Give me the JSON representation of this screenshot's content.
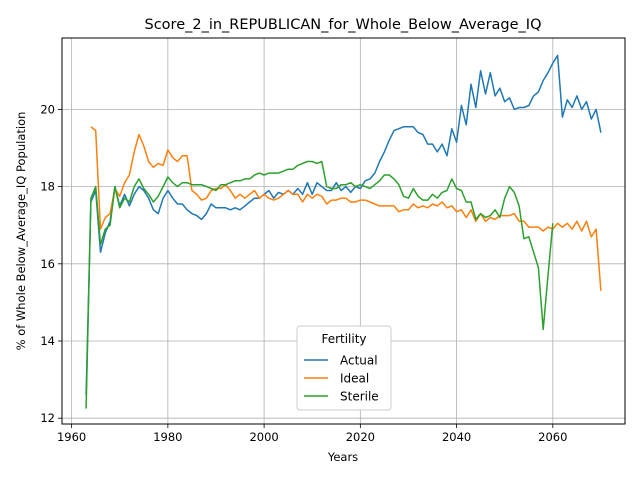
{
  "chart_data": {
    "type": "line",
    "title": "Score_2_in_REPUBLICAN_for_Whole_Below_Average_IQ",
    "xlabel": "Years",
    "ylabel": "% of Whole Below_Average_IQ Population",
    "xlim": [
      1958,
      2075
    ],
    "ylim": [
      11.85,
      21.85
    ],
    "xticks": [
      1960,
      1980,
      2000,
      2020,
      2040,
      2060
    ],
    "yticks": [
      12,
      14,
      16,
      18,
      20
    ],
    "grid": true,
    "legend": {
      "title": "Fertility",
      "placement": "bottom-center"
    },
    "x": [
      1963,
      1964,
      1965,
      1966,
      1967,
      1968,
      1969,
      1970,
      1971,
      1972,
      1973,
      1974,
      1975,
      1976,
      1977,
      1978,
      1979,
      1980,
      1981,
      1982,
      1983,
      1984,
      1985,
      1986,
      1987,
      1988,
      1989,
      1990,
      1991,
      1992,
      1993,
      1994,
      1995,
      1996,
      1997,
      1998,
      1999,
      2000,
      2001,
      2002,
      2003,
      2004,
      2005,
      2006,
      2007,
      2008,
      2009,
      2010,
      2011,
      2012,
      2013,
      2014,
      2015,
      2016,
      2017,
      2018,
      2019,
      2020,
      2021,
      2022,
      2023,
      2024,
      2025,
      2026,
      2027,
      2028,
      2029,
      2030,
      2031,
      2032,
      2033,
      2034,
      2035,
      2036,
      2037,
      2038,
      2039,
      2040,
      2041,
      2042,
      2043,
      2044,
      2045,
      2046,
      2047,
      2048,
      2049,
      2050,
      2051,
      2052,
      2053,
      2054,
      2055,
      2056,
      2057,
      2058,
      2059,
      2060,
      2061,
      2062,
      2063,
      2064,
      2065,
      2066,
      2067,
      2068,
      2069,
      2070
    ],
    "series": [
      {
        "name": "Actual",
        "color": "#1f77b4",
        "values": [
          12.6,
          17.6,
          17.9,
          16.3,
          16.8,
          17.1,
          18.0,
          17.5,
          17.8,
          17.5,
          17.8,
          18.0,
          17.9,
          17.7,
          17.4,
          17.3,
          17.7,
          17.9,
          17.7,
          17.55,
          17.55,
          17.4,
          17.3,
          17.25,
          17.15,
          17.3,
          17.55,
          17.45,
          17.45,
          17.45,
          17.4,
          17.45,
          17.4,
          17.5,
          17.6,
          17.7,
          17.7,
          17.8,
          17.9,
          17.7,
          17.85,
          17.8,
          17.9,
          17.8,
          17.95,
          17.8,
          18.1,
          17.8,
          18.1,
          18.0,
          17.9,
          17.9,
          18.1,
          17.9,
          18.0,
          17.85,
          18.0,
          17.95,
          18.15,
          18.2,
          18.35,
          18.65,
          18.9,
          19.2,
          19.45,
          19.5,
          19.55,
          19.55,
          19.55,
          19.4,
          19.35,
          19.1,
          19.1,
          18.9,
          19.1,
          18.8,
          19.5,
          19.15,
          20.1,
          19.6,
          20.65,
          20.05,
          21.0,
          20.4,
          20.95,
          20.35,
          20.55,
          20.2,
          20.3,
          20.0,
          20.05,
          20.05,
          20.1,
          20.35,
          20.45,
          20.75,
          20.95,
          21.2,
          21.4,
          19.8,
          20.25,
          20.05,
          20.35,
          20.0,
          20.2,
          19.75,
          20.0,
          19.4
        ]
      },
      {
        "name": "Ideal",
        "color": "#ff7f0e",
        "values": [
          null,
          19.55,
          19.45,
          16.9,
          17.2,
          17.3,
          17.95,
          17.75,
          18.1,
          18.3,
          18.9,
          19.35,
          19.05,
          18.65,
          18.5,
          18.6,
          18.55,
          18.95,
          18.75,
          18.65,
          18.8,
          18.8,
          17.9,
          17.8,
          17.65,
          17.7,
          17.9,
          17.95,
          17.95,
          18.05,
          17.9,
          17.7,
          17.8,
          17.7,
          17.8,
          17.9,
          17.7,
          17.8,
          17.7,
          17.65,
          17.7,
          17.8,
          17.9,
          17.8,
          17.8,
          17.6,
          17.8,
          17.7,
          17.8,
          17.75,
          17.55,
          17.65,
          17.65,
          17.7,
          17.7,
          17.6,
          17.6,
          17.65,
          17.65,
          17.6,
          17.55,
          17.5,
          17.5,
          17.5,
          17.5,
          17.35,
          17.4,
          17.4,
          17.55,
          17.45,
          17.5,
          17.45,
          17.55,
          17.5,
          17.6,
          17.45,
          17.5,
          17.35,
          17.4,
          17.2,
          17.4,
          17.1,
          17.3,
          17.1,
          17.2,
          17.15,
          17.25,
          17.25,
          17.25,
          17.3,
          17.1,
          17.1,
          16.95,
          16.95,
          16.95,
          16.85,
          16.95,
          16.9,
          17.05,
          16.95,
          17.05,
          16.9,
          17.1,
          16.85,
          17.1,
          16.7,
          16.9,
          15.3
        ]
      },
      {
        "name": "Sterile",
        "color": "#2ca02c",
        "values": [
          12.25,
          17.7,
          18.0,
          16.5,
          16.9,
          17.0,
          18.0,
          17.45,
          17.7,
          17.6,
          18.0,
          18.2,
          17.95,
          17.8,
          17.6,
          17.75,
          18.0,
          18.25,
          18.1,
          18.0,
          18.1,
          18.1,
          18.05,
          18.05,
          18.05,
          18.0,
          17.95,
          17.9,
          18.05,
          18.05,
          18.1,
          18.15,
          18.15,
          18.2,
          18.2,
          18.3,
          18.35,
          18.3,
          18.35,
          18.35,
          18.35,
          18.4,
          18.45,
          18.45,
          18.55,
          18.6,
          18.65,
          18.65,
          18.6,
          18.65,
          18.0,
          17.95,
          17.95,
          18.05,
          18.05,
          18.1,
          18.0,
          18.05,
          18.0,
          17.95,
          18.05,
          18.15,
          18.3,
          18.3,
          18.2,
          18.05,
          17.75,
          17.7,
          17.95,
          17.75,
          17.65,
          17.65,
          17.8,
          17.7,
          17.85,
          17.9,
          18.2,
          17.95,
          17.9,
          17.6,
          17.6,
          17.15,
          17.3,
          17.2,
          17.25,
          17.4,
          17.2,
          17.7,
          18.0,
          17.85,
          17.5,
          16.65,
          16.7,
          16.3,
          15.9,
          14.3,
          15.7,
          17.05,
          null,
          null,
          null,
          null,
          null,
          null,
          null,
          null,
          null,
          null
        ]
      }
    ]
  }
}
